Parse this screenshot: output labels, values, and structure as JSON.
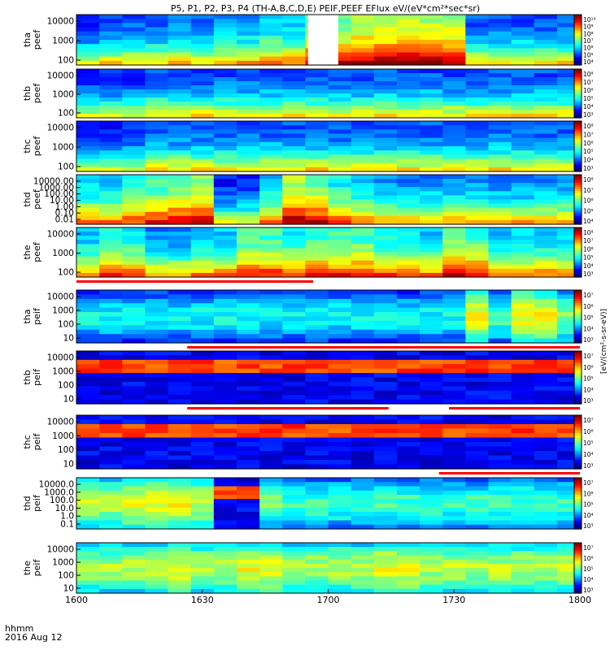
{
  "title": "P5, P1, P2, P3, P4 (TH-A,B,C,D,E) PEIF,PEEF EFlux eV/(eV*cm²*sec*sr)",
  "footer": {
    "time_label": "hhmm",
    "date_label": "2016 Aug 12"
  },
  "colorbar_label": "[eV/(cm²-s-sr-eV)]",
  "chart_data": {
    "type": "heatmap",
    "x_tick_labels": [
      "1600",
      "1630",
      "1700",
      "1730",
      "1800"
    ],
    "x_range_hhmm": [
      "1600",
      "1800"
    ],
    "panels": [
      {
        "probe": "tha",
        "species": "peef",
        "y_ticks": [
          "10000",
          "1000",
          "100"
        ],
        "colorbar_ticks": [
          "10¹⁰",
          "10⁹",
          "10⁸",
          "10⁷",
          "10⁶",
          "10⁵",
          "10⁴"
        ],
        "level_bins": [
          1,
          2,
          2,
          2,
          3,
          2,
          3,
          3,
          4,
          4,
          7,
          7,
          8,
          8,
          8,
          8,
          8,
          2,
          2,
          2,
          2,
          2
        ],
        "gap": [
          0.46,
          0.52
        ]
      },
      {
        "probe": "thb",
        "species": "peef",
        "y_ticks": [
          "10000",
          "1000",
          "100"
        ],
        "colorbar_ticks": [
          "10⁸",
          "10⁷",
          "10⁶",
          "10⁵",
          "10⁴",
          "10³"
        ],
        "level_bins": [
          1,
          1,
          1,
          2,
          2,
          2,
          2,
          2,
          2,
          2,
          2,
          2,
          2,
          2,
          2,
          2,
          2,
          2,
          2,
          2,
          2,
          2
        ]
      },
      {
        "probe": "thc",
        "species": "peef",
        "y_ticks": [
          "10000",
          "1000",
          "100"
        ],
        "colorbar_ticks": [
          "10⁸",
          "10⁷",
          "10⁶",
          "10⁵",
          "10⁴",
          "10³"
        ],
        "level_bins": [
          1,
          1,
          1,
          2,
          2,
          2,
          2,
          2,
          2,
          2,
          2,
          2,
          2,
          2,
          2,
          2,
          2,
          2,
          2,
          2,
          2,
          2
        ]
      },
      {
        "probe": "thd",
        "species": "peef",
        "y_ticks": [
          "10000.00",
          "1000.00",
          "100.00",
          "10.00",
          "1.00",
          "0.10",
          "0.01"
        ],
        "colorbar_ticks": [
          "10⁸",
          "10⁷",
          "10⁶",
          "10⁵",
          "10⁴"
        ],
        "level_bins": [
          4,
          4,
          5,
          6,
          7,
          7,
          1,
          1,
          4,
          8,
          7,
          5,
          4,
          3,
          3,
          3,
          3,
          3,
          3,
          3,
          3,
          3
        ]
      },
      {
        "probe": "the",
        "species": "peef",
        "y_ticks": [
          "10000",
          "1000",
          "100"
        ],
        "colorbar_ticks": [
          "10⁸",
          "10⁷",
          "10⁶",
          "10⁵",
          "10⁴",
          "10³"
        ],
        "level_bins": [
          4,
          5,
          5,
          3,
          3,
          4,
          4,
          6,
          6,
          5,
          6,
          6,
          6,
          5,
          5,
          4,
          7,
          6,
          4,
          4,
          4,
          4
        ],
        "flag_fraction": 0.47
      },
      {
        "probe": "tha",
        "species": "peif",
        "y_ticks": [
          "10000",
          "1000",
          "100",
          "10"
        ],
        "colorbar_ticks": [
          "10⁷",
          "10⁶",
          "10⁵",
          "10⁴",
          "10³"
        ],
        "level_bins": [
          2,
          2,
          2,
          2,
          2,
          2,
          2,
          2,
          2,
          2,
          2,
          2,
          2,
          2,
          2,
          2,
          2,
          6,
          3,
          6,
          6,
          4
        ],
        "flag_range": [
          0.22,
          1.0
        ]
      },
      {
        "probe": "thb",
        "species": "peif",
        "y_ticks": [
          "10000",
          "1000",
          "100",
          "10"
        ],
        "colorbar_ticks": [
          "10⁷",
          "10⁶",
          "10⁵",
          "10⁴",
          "10³"
        ],
        "level_bins": [
          1,
          1,
          1,
          1,
          1,
          1,
          1,
          1,
          1,
          1,
          1,
          1,
          1,
          1,
          1,
          1,
          1,
          1,
          1,
          1,
          1,
          1
        ],
        "flag_segments": [
          [
            0.22,
            0.62
          ],
          [
            0.74,
            1.0
          ]
        ]
      },
      {
        "probe": "thc",
        "species": "peif",
        "y_ticks": [
          "10000",
          "1000",
          "100",
          "10"
        ],
        "colorbar_ticks": [
          "10⁷",
          "10⁶",
          "10⁵",
          "10⁴",
          "10³"
        ],
        "level_bins": [
          1,
          1,
          1,
          1,
          1,
          1,
          1,
          1,
          1,
          1,
          1,
          1,
          1,
          1,
          1,
          1,
          1,
          1,
          1,
          1,
          1,
          1
        ],
        "flag_range": [
          0.72,
          1.0
        ]
      },
      {
        "probe": "thd",
        "species": "peif",
        "y_ticks": [
          "10000.0",
          "1000.0",
          "100.0",
          "10.0",
          "1.0",
          "0.1"
        ],
        "colorbar_ticks": [
          "10⁷",
          "10⁶",
          "10⁵",
          "10⁴",
          "10³"
        ],
        "level_bins": [
          5,
          5,
          6,
          6,
          6,
          5,
          1,
          1,
          4,
          3,
          3,
          3,
          3,
          3,
          3,
          3,
          3,
          3,
          3,
          3,
          3,
          3
        ]
      },
      {
        "probe": "the",
        "species": "peif",
        "y_ticks": [
          "10000",
          "1000",
          "100",
          "10"
        ],
        "colorbar_ticks": [
          "10⁷",
          "10⁶",
          "10⁵",
          "10⁴",
          "10³"
        ],
        "level_bins": [
          5,
          5,
          5,
          5,
          6,
          5,
          5,
          6,
          6,
          5,
          5,
          5,
          5,
          6,
          6,
          5,
          5,
          5,
          5,
          5,
          5,
          5
        ]
      }
    ]
  }
}
